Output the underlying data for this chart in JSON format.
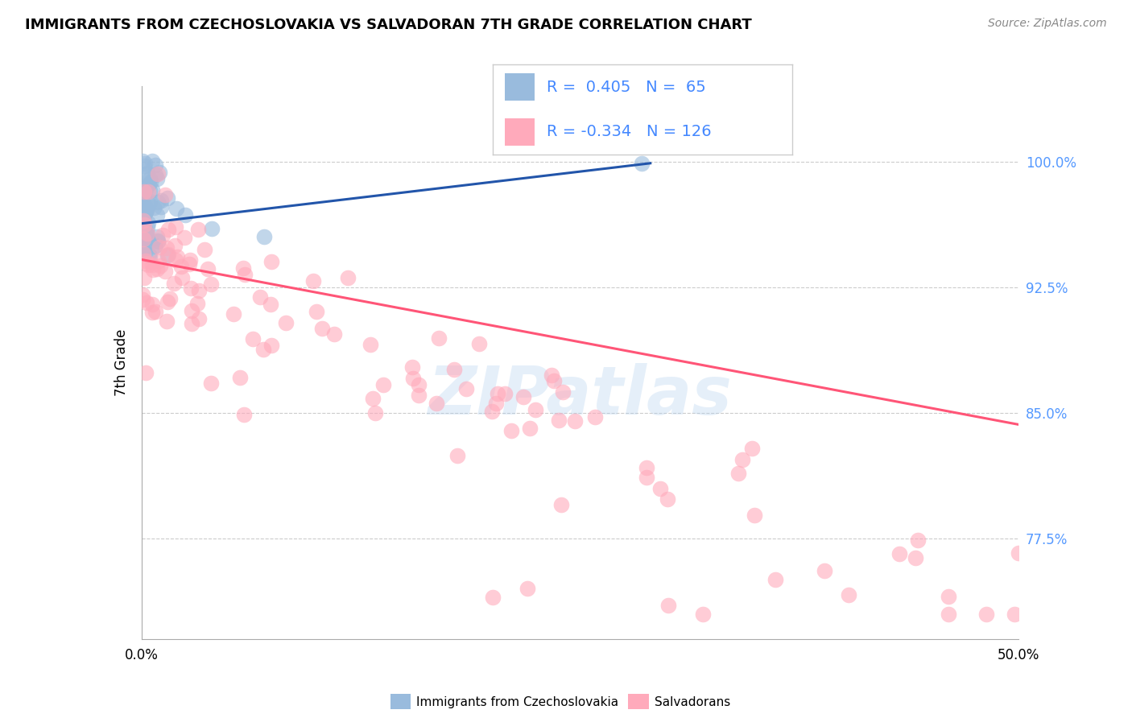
{
  "title": "IMMIGRANTS FROM CZECHOSLOVAKIA VS SALVADORAN 7TH GRADE CORRELATION CHART",
  "source": "Source: ZipAtlas.com",
  "ylabel": "7th Grade",
  "yaxis_labels": [
    "100.0%",
    "92.5%",
    "85.0%",
    "77.5%"
  ],
  "yaxis_values": [
    1.0,
    0.925,
    0.85,
    0.775
  ],
  "blue_color": "#99BBDD",
  "pink_color": "#FFAABB",
  "blue_line_color": "#2255AA",
  "pink_line_color": "#FF5577",
  "watermark": "ZIPatlas",
  "xlim": [
    0.0,
    0.5
  ],
  "ylim": [
    0.715,
    1.045
  ],
  "blue_trend_x": [
    0.0,
    0.29
  ],
  "blue_trend_y": [
    0.963,
    0.999
  ],
  "pink_trend_x": [
    0.0,
    0.5
  ],
  "pink_trend_y": [
    0.9415,
    0.843
  ]
}
